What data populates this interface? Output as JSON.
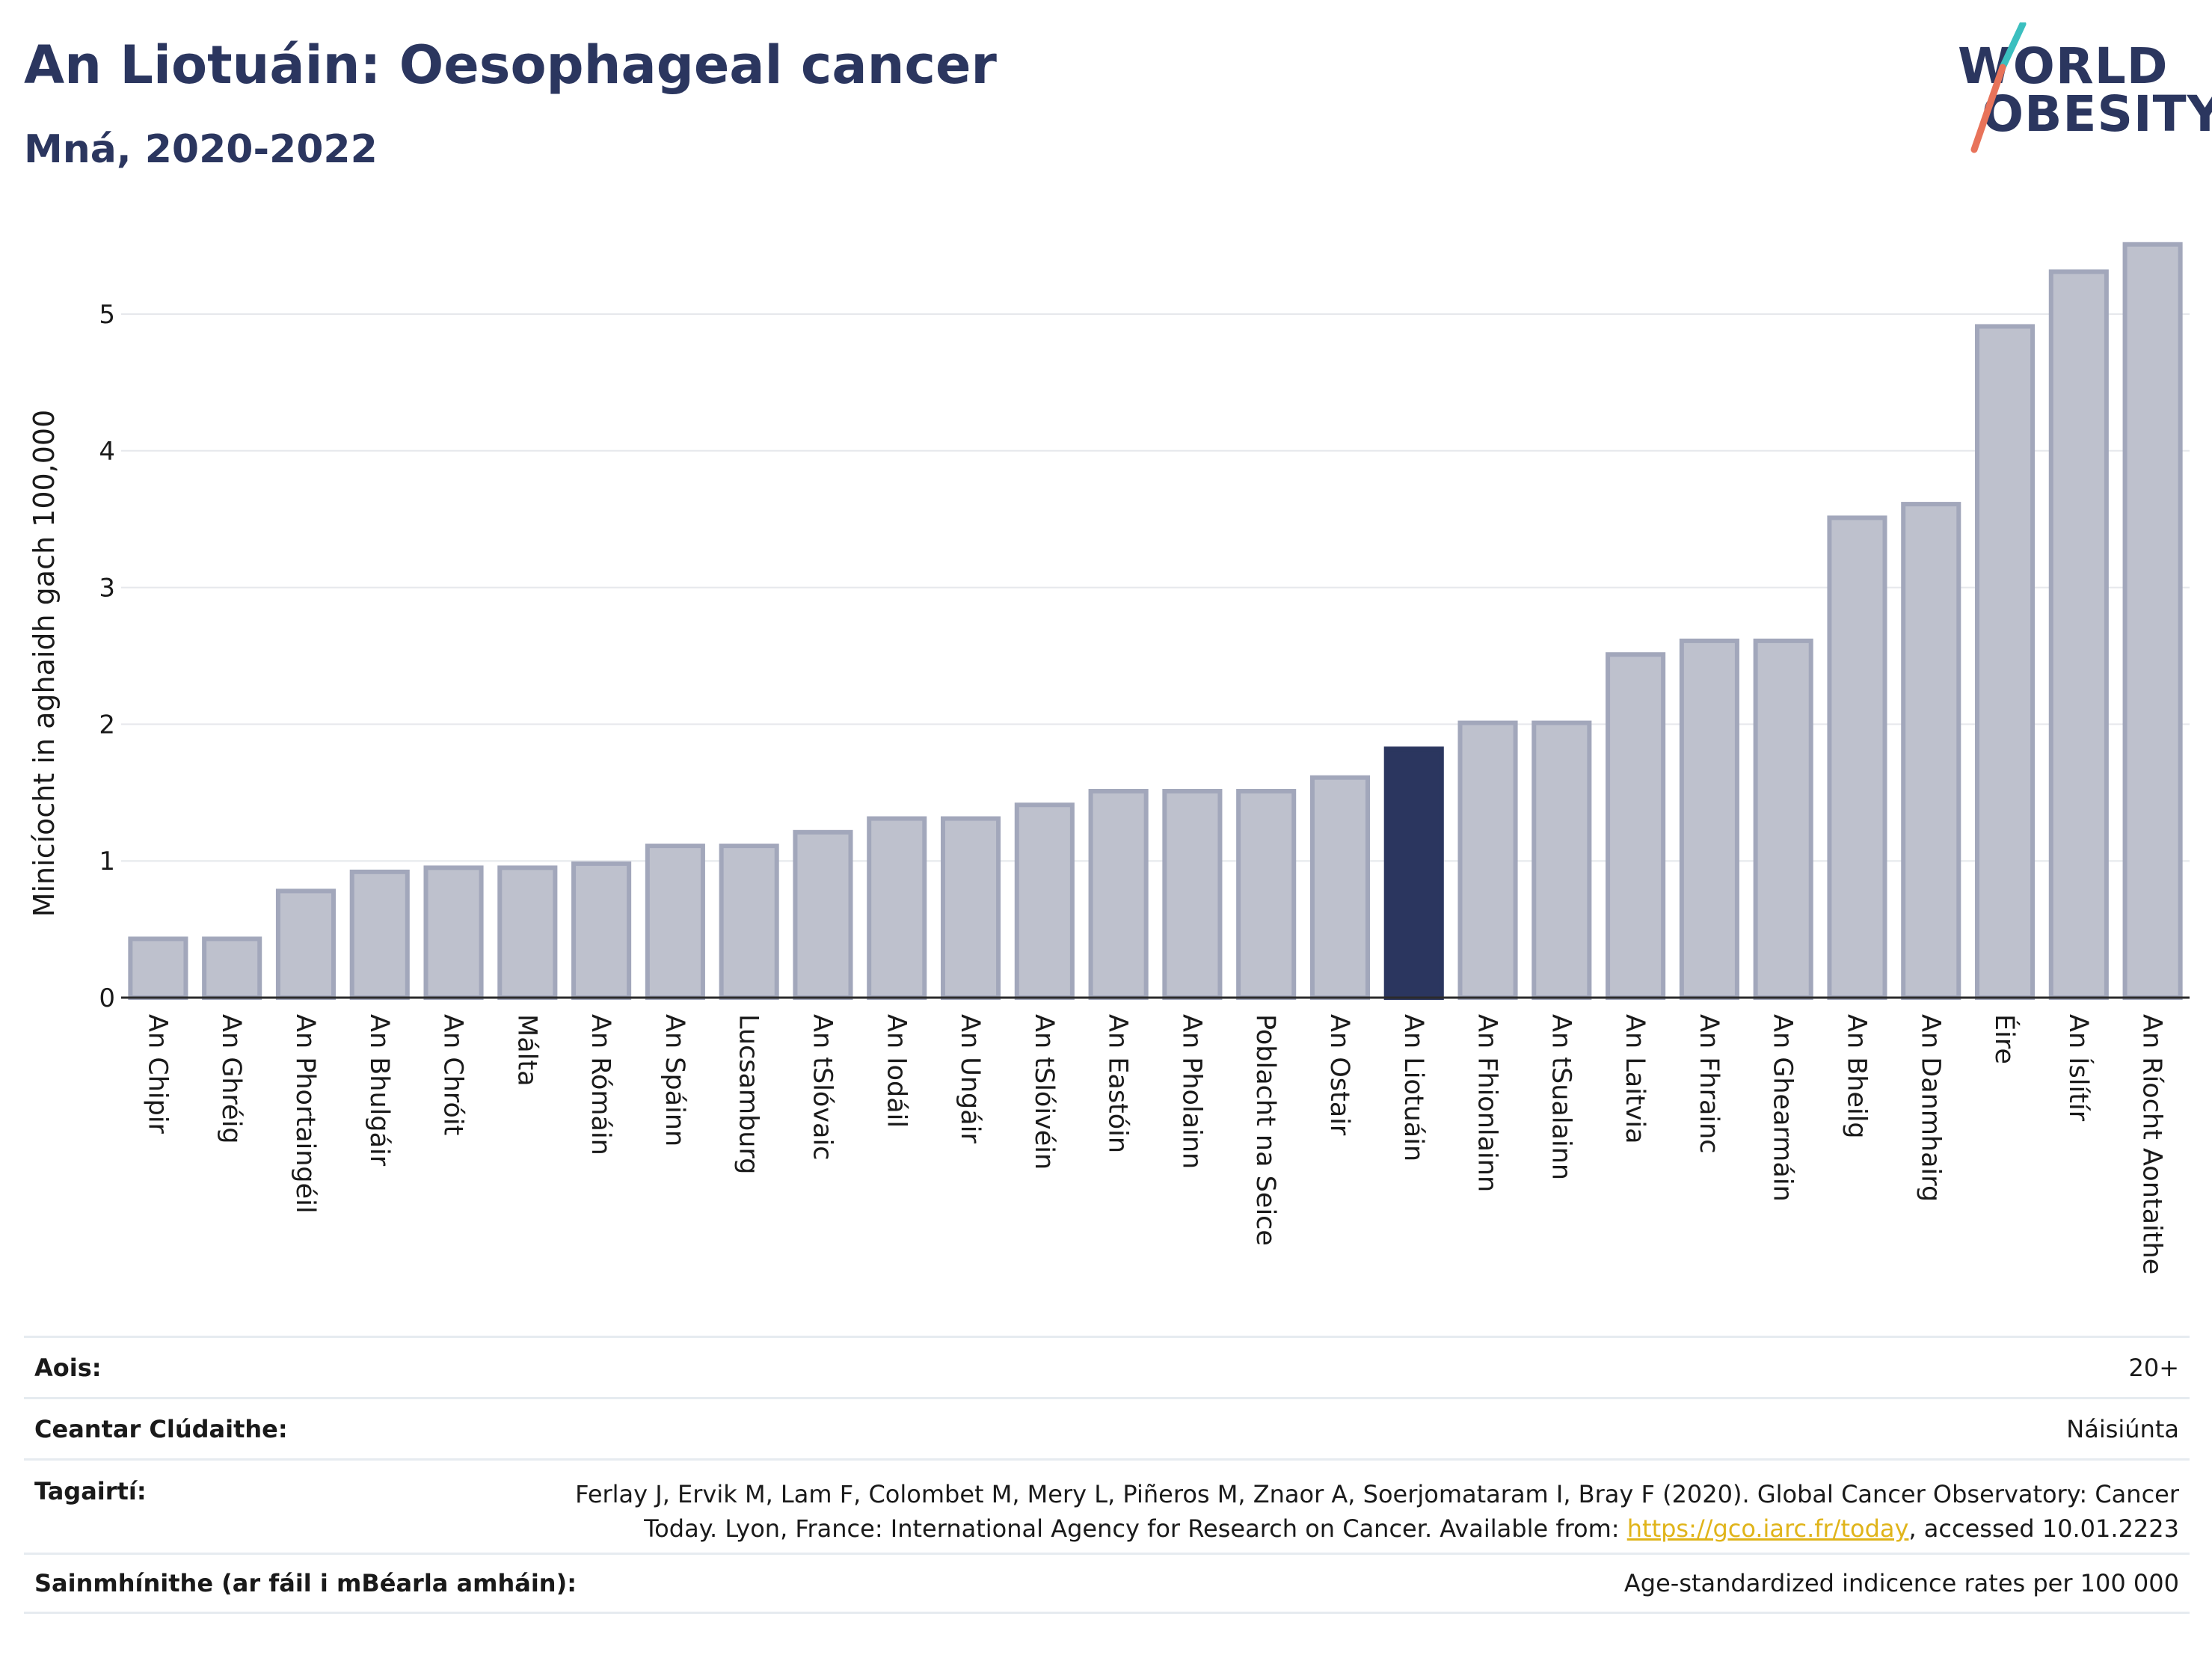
{
  "header": {
    "title": "An Liotuáin: Oesophageal cancer",
    "subtitle": "Mná, 2020-2022"
  },
  "logo": {
    "line1": "WORLD",
    "line2": "OBESITY",
    "colors": {
      "text": "#2b365f",
      "slash_top": "#3bbfbf",
      "slash_bottom": "#e8735a"
    }
  },
  "colors": {
    "bar_default": "#bec1cd",
    "bar_default_border": "#a2a7bb",
    "bar_highlight": "#2b365f",
    "grid": "#e6e8ec",
    "title": "#2b365f",
    "link": "#e0b41a"
  },
  "chart_data": {
    "type": "bar",
    "title": "An Liotuáin: Oesophageal cancer",
    "subtitle": "Mná, 2020-2022",
    "xlabel": "",
    "ylabel": "Minicíocht in aghaidh gach 100,000",
    "ylim": [
      0,
      5.6
    ],
    "yticks": [
      0,
      1,
      2,
      3,
      4,
      5
    ],
    "grid": true,
    "highlight": "An Liotuáin",
    "categories": [
      "An Chipir",
      "An Ghréig",
      "An Phortaingéil",
      "An Bhulgáir",
      "An Chróit",
      "Málta",
      "An Rómáin",
      "An Spáinn",
      "Lucsamburg",
      "An tSlóvaic",
      "An Iodáil",
      "An Ungáir",
      "An tSlóivéin",
      "An Eastóin",
      "An Pholainn",
      "Poblacht na Seice",
      "An Ostair",
      "An Liotuáin",
      "An Fhionlainn",
      "An tSualainn",
      "An Laitvia",
      "An Fhrainc",
      "An Ghearmáin",
      "An Bheilg",
      "An Danmhairg",
      "Éire",
      "An Íslítír",
      "An Ríocht Aontaithe"
    ],
    "values": [
      0.43,
      0.43,
      0.78,
      0.92,
      0.95,
      0.95,
      0.98,
      1.11,
      1.11,
      1.21,
      1.31,
      1.31,
      1.41,
      1.51,
      1.51,
      1.51,
      1.61,
      1.82,
      2.01,
      2.01,
      2.51,
      2.61,
      2.61,
      3.51,
      3.61,
      4.91,
      5.31,
      5.51
    ]
  },
  "meta": [
    {
      "label": "Aois:",
      "value": "20+"
    },
    {
      "label": "Ceantar Clúdaithe:",
      "value": "Náisiúnta"
    },
    {
      "label": "Tagairtí:",
      "value_line1": "Ferlay J, Ervik M, Lam F, Colombet M, Mery L, Piñeros M, Znaor A, Soerjomataram I, Bray F (2020). Global Cancer Observatory: Cancer",
      "value_line2_pre": "Today. Lyon, France: International Agency for Research on Cancer. Available from: ",
      "link": "https://gco.iarc.fr/today",
      "value_line2_post": ", accessed 10.01.2223"
    },
    {
      "label": "Sainmhínithe (ar fáil i mBéarla amháin):",
      "value": "Age-standardized indicence rates per 100 000"
    }
  ]
}
